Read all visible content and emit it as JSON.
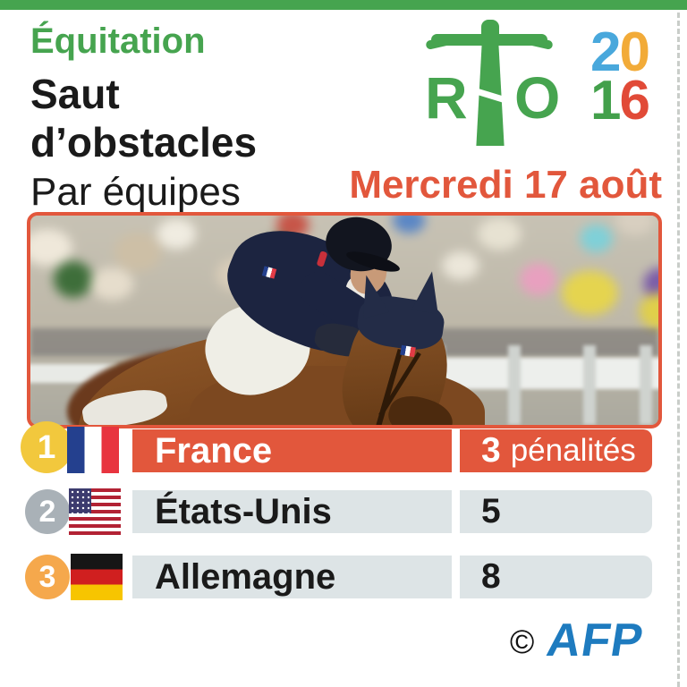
{
  "colors": {
    "green": "#46a44f",
    "orange": "#e2573c",
    "gold": "#f2c83d",
    "silver": "#a9b1b7",
    "bronze": "#f5a84c",
    "gray_bar": "#dde4e6",
    "text": "#1a1a1a",
    "afp_blue": "#1e7bbf",
    "digit_blue": "#49a8dc",
    "digit_yellow": "#f2ab38",
    "digit_green": "#43a04b",
    "digit_red": "#e14a37",
    "dash": "#c9cdc9"
  },
  "header": {
    "category": "Équitation",
    "title_line1": "Saut",
    "title_line2": "d’obstacles",
    "subtitle": "Par équipes",
    "date": "Mercredi 17 août"
  },
  "logo": {
    "letter_r": "R",
    "letter_o": "O",
    "year_digits": [
      "2",
      "0",
      "1",
      "6"
    ],
    "statue_icon": "christ-redeemer-icon"
  },
  "results": {
    "rows": [
      {
        "rank": "1",
        "country": "France",
        "points": "3",
        "points_label": "pénalités",
        "flag": "france"
      },
      {
        "rank": "2",
        "country": "États-Unis",
        "points": "5",
        "points_label": "",
        "flag": "usa"
      },
      {
        "rank": "3",
        "country": "Allemagne",
        "points": "8",
        "points_label": "",
        "flag": "germany"
      }
    ]
  },
  "footer": {
    "copyright": "©",
    "agency": "AFP"
  }
}
